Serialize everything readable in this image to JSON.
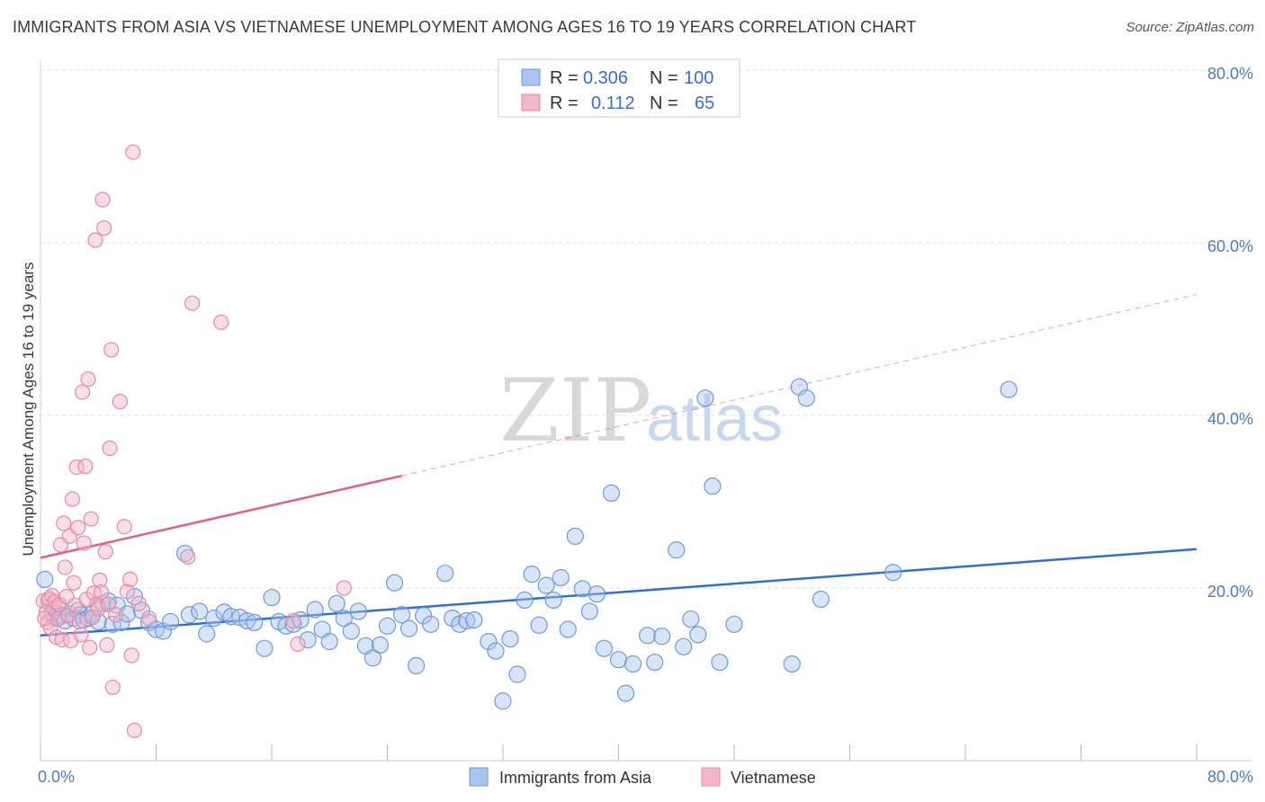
{
  "header": {
    "title": "IMMIGRANTS FROM ASIA VS VIETNAMESE UNEMPLOYMENT AMONG AGES 16 TO 19 YEARS CORRELATION CHART",
    "source": "Source: ZipAtlas.com"
  },
  "watermark": {
    "zip": "ZIP",
    "atlas": "atlas"
  },
  "legend": {
    "rows": [
      {
        "r_label": "R =",
        "r_value": "0.306",
        "n_label": "N =",
        "n_value": "100",
        "color": "#a9c4ee"
      },
      {
        "r_label": "R =",
        "r_value": "0.112",
        "n_label": "N =",
        "n_value": "65",
        "color": "#f4b6c8"
      }
    ]
  },
  "chart_data": {
    "type": "scatter",
    "title": "IMMIGRANTS FROM ASIA VS VIETNAMESE UNEMPLOYMENT AMONG AGES 16 TO 19 YEARS CORRELATION CHART",
    "xlabel": "",
    "ylabel": "Unemployment Among Ages 16 to 19 years",
    "xlim": [
      0,
      80
    ],
    "ylim": [
      0,
      80
    ],
    "x_tick_labels": [
      "0.0%",
      "80.0%"
    ],
    "y_tick_labels": [
      "20.0%",
      "40.0%",
      "60.0%",
      "80.0%"
    ],
    "y_ticks": [
      20,
      40,
      60,
      80
    ],
    "grid": true,
    "legend_position": "top-center",
    "series": [
      {
        "name": "Immigrants from Asia",
        "color": "#a9c4ee",
        "stroke": "#6f9ad8",
        "trend": {
          "x": [
            0,
            80
          ],
          "y": [
            14.5,
            24.5
          ],
          "color": "#2f6fcf"
        },
        "points": [
          [
            0.3,
            21.0
          ],
          [
            0.6,
            18.5
          ],
          [
            0.8,
            17.2
          ],
          [
            1.0,
            16.5
          ],
          [
            1.2,
            17.8
          ],
          [
            1.5,
            16.8
          ],
          [
            1.7,
            16.2
          ],
          [
            2.0,
            17.0
          ],
          [
            2.3,
            16.5
          ],
          [
            2.6,
            17.4
          ],
          [
            2.8,
            16.9
          ],
          [
            3.0,
            16.3
          ],
          [
            3.3,
            16.5
          ],
          [
            3.6,
            17.0
          ],
          [
            4.0,
            16.1
          ],
          [
            4.3,
            18.2
          ],
          [
            4.7,
            18.5
          ],
          [
            5.0,
            15.8
          ],
          [
            5.3,
            18.0
          ],
          [
            5.6,
            16.0
          ],
          [
            6.0,
            17.0
          ],
          [
            6.5,
            19.0
          ],
          [
            7.0,
            17.4
          ],
          [
            7.5,
            16.0
          ],
          [
            8.0,
            15.2
          ],
          [
            8.5,
            15.0
          ],
          [
            9.0,
            16.1
          ],
          [
            10.0,
            24.0
          ],
          [
            10.3,
            16.9
          ],
          [
            11.0,
            17.3
          ],
          [
            11.5,
            14.7
          ],
          [
            12.0,
            16.5
          ],
          [
            12.7,
            17.2
          ],
          [
            13.2,
            16.7
          ],
          [
            13.8,
            16.6
          ],
          [
            14.3,
            16.2
          ],
          [
            14.8,
            16.0
          ],
          [
            15.5,
            13.0
          ],
          [
            16.0,
            18.9
          ],
          [
            16.5,
            16.1
          ],
          [
            17.0,
            15.6
          ],
          [
            17.5,
            15.8
          ],
          [
            18.0,
            16.3
          ],
          [
            18.5,
            14.0
          ],
          [
            19.0,
            17.5
          ],
          [
            19.5,
            15.2
          ],
          [
            20.0,
            13.8
          ],
          [
            20.5,
            18.2
          ],
          [
            21.0,
            16.5
          ],
          [
            21.5,
            15.0
          ],
          [
            22.0,
            17.3
          ],
          [
            22.5,
            13.3
          ],
          [
            23.0,
            11.9
          ],
          [
            23.5,
            13.4
          ],
          [
            24.0,
            15.6
          ],
          [
            24.5,
            20.6
          ],
          [
            25.0,
            16.9
          ],
          [
            25.5,
            15.3
          ],
          [
            26.0,
            11.0
          ],
          [
            26.5,
            16.8
          ],
          [
            27.0,
            15.8
          ],
          [
            28.0,
            21.7
          ],
          [
            28.5,
            16.5
          ],
          [
            29.0,
            15.8
          ],
          [
            29.5,
            16.2
          ],
          [
            30.0,
            16.3
          ],
          [
            31.0,
            13.8
          ],
          [
            31.5,
            12.7
          ],
          [
            32.0,
            6.9
          ],
          [
            32.5,
            14.1
          ],
          [
            33.0,
            10.0
          ],
          [
            33.5,
            18.6
          ],
          [
            34.0,
            21.6
          ],
          [
            34.5,
            15.7
          ],
          [
            35.0,
            20.3
          ],
          [
            35.5,
            18.6
          ],
          [
            36.0,
            21.2
          ],
          [
            36.5,
            15.2
          ],
          [
            37.0,
            26.0
          ],
          [
            37.5,
            19.9
          ],
          [
            38.0,
            17.3
          ],
          [
            38.5,
            19.3
          ],
          [
            39.0,
            13.0
          ],
          [
            39.5,
            31.0
          ],
          [
            40.0,
            11.7
          ],
          [
            40.5,
            7.8
          ],
          [
            41.0,
            11.2
          ],
          [
            42.0,
            14.5
          ],
          [
            42.5,
            11.4
          ],
          [
            43.0,
            14.4
          ],
          [
            44.0,
            24.4
          ],
          [
            44.5,
            13.2
          ],
          [
            45.0,
            16.4
          ],
          [
            45.5,
            14.6
          ],
          [
            46.0,
            42.0
          ],
          [
            46.5,
            31.8
          ],
          [
            47.0,
            11.4
          ],
          [
            48.0,
            15.8
          ],
          [
            52.0,
            11.2
          ],
          [
            52.5,
            43.3
          ],
          [
            53.0,
            42.0
          ],
          [
            54.0,
            18.7
          ],
          [
            59.0,
            21.8
          ],
          [
            67.0,
            43.0
          ]
        ]
      },
      {
        "name": "Vietnamese",
        "color": "#f4b6c8",
        "stroke": "#e58aa6",
        "trend": {
          "x": [
            0,
            25
          ],
          "y": [
            23.5,
            33.0
          ],
          "color": "#e0608a"
        },
        "trend_extension": {
          "x": [
            25,
            80
          ],
          "y": [
            33.0,
            54.0
          ]
        },
        "points": [
          [
            0.2,
            18.5
          ],
          [
            0.4,
            17.2
          ],
          [
            0.5,
            16.0
          ],
          [
            0.6,
            18.8
          ],
          [
            0.7,
            15.4
          ],
          [
            0.8,
            19.1
          ],
          [
            0.9,
            17.6
          ],
          [
            1.0,
            18.4
          ],
          [
            1.1,
            14.3
          ],
          [
            1.2,
            16.4
          ],
          [
            1.3,
            18.1
          ],
          [
            1.4,
            25.0
          ],
          [
            1.5,
            14.0
          ],
          [
            1.6,
            27.5
          ],
          [
            1.7,
            22.4
          ],
          [
            1.8,
            19.0
          ],
          [
            1.9,
            16.8
          ],
          [
            2.0,
            26.0
          ],
          [
            2.1,
            13.9
          ],
          [
            2.2,
            30.3
          ],
          [
            2.3,
            20.6
          ],
          [
            2.4,
            18.0
          ],
          [
            2.5,
            34.0
          ],
          [
            2.6,
            27.0
          ],
          [
            2.7,
            16.1
          ],
          [
            2.8,
            14.6
          ],
          [
            2.9,
            42.7
          ],
          [
            3.0,
            25.2
          ],
          [
            3.1,
            34.1
          ],
          [
            3.2,
            18.7
          ],
          [
            3.3,
            44.2
          ],
          [
            3.4,
            13.1
          ],
          [
            3.5,
            28.0
          ],
          [
            3.6,
            16.6
          ],
          [
            3.7,
            19.4
          ],
          [
            3.8,
            60.3
          ],
          [
            3.9,
            18.1
          ],
          [
            4.0,
            17.6
          ],
          [
            4.1,
            20.9
          ],
          [
            4.2,
            19.5
          ],
          [
            4.3,
            65.0
          ],
          [
            4.4,
            61.7
          ],
          [
            4.5,
            24.2
          ],
          [
            4.6,
            13.4
          ],
          [
            4.7,
            18.1
          ],
          [
            4.8,
            36.2
          ],
          [
            4.9,
            47.6
          ],
          [
            5.0,
            8.5
          ],
          [
            5.2,
            16.9
          ],
          [
            5.5,
            41.6
          ],
          [
            5.8,
            27.1
          ],
          [
            6.0,
            19.6
          ],
          [
            6.2,
            21.0
          ],
          [
            6.3,
            12.2
          ],
          [
            6.4,
            70.5
          ],
          [
            6.5,
            3.5
          ],
          [
            6.8,
            18.2
          ],
          [
            7.5,
            16.5
          ],
          [
            10.5,
            53.0
          ],
          [
            10.2,
            23.6
          ],
          [
            12.5,
            50.8
          ],
          [
            17.5,
            16.2
          ],
          [
            17.8,
            13.5
          ],
          [
            21.0,
            20.0
          ],
          [
            0.3,
            16.5
          ]
        ]
      }
    ]
  },
  "bottom_legend": {
    "items": [
      {
        "label": "Immigrants from Asia",
        "color": "#a9c4ee"
      },
      {
        "label": "Vietnamese",
        "color": "#f4b6c8"
      }
    ]
  }
}
